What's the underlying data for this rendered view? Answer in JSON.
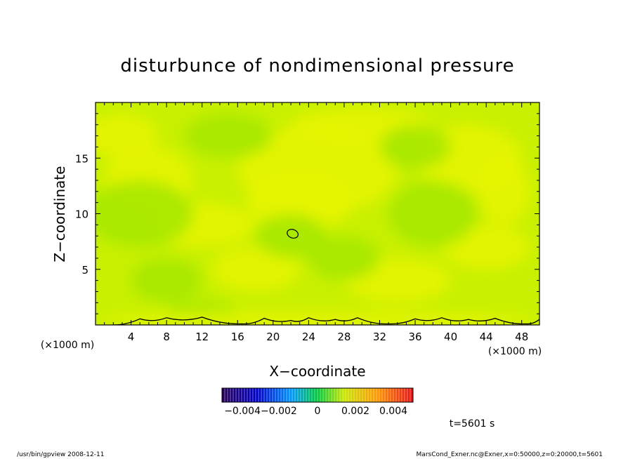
{
  "footer": {
    "left": "/usr/bin/gpview   2008-12-11",
    "right": "MarsCond_Exner.nc@Exner,x=0:50000,z=0:20000,t=5601"
  },
  "time_label": "t=5601 s",
  "colorbar": {
    "min": -0.005,
    "max": 0.005,
    "tick_labels": [
      "−0.004−0.002",
      "0",
      "0.002",
      "0.004"
    ]
  },
  "chart_data": {
    "type": "heatmap",
    "title": "disturbunce of nondimensional pressure",
    "xlabel": "X−coordinate",
    "ylabel": "Z−coordinate",
    "x_unit": "(×1000 m)",
    "y_unit": "(×1000 m)",
    "xlim": [
      0,
      50
    ],
    "ylim": [
      0,
      20
    ],
    "x_ticks": [
      4,
      8,
      12,
      16,
      20,
      24,
      28,
      32,
      36,
      40,
      44,
      48
    ],
    "y_ticks": [
      5,
      10,
      15
    ],
    "value_range": [
      -0.001,
      0.001
    ],
    "contour_closed_center": [
      22.2,
      8.2
    ],
    "colors": {
      "dominant": "#c8f000",
      "light": "#e8f400",
      "green": "#a4e800",
      "line": "#000000"
    }
  }
}
